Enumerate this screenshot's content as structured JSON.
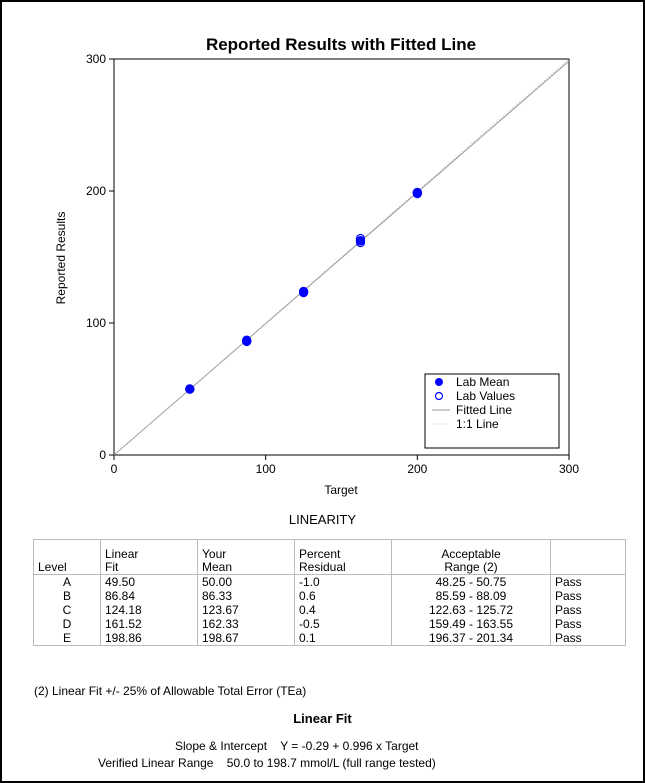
{
  "chart_data": {
    "type": "scatter",
    "title": "Reported Results with Fitted Line",
    "xlabel": "Target",
    "ylabel": "Reported Results",
    "xlim": [
      0,
      300
    ],
    "ylim": [
      0,
      300
    ],
    "xticks": [
      "0",
      "100",
      "200",
      "300"
    ],
    "yticks": [
      "0",
      "100",
      "200",
      "300"
    ],
    "grid": false,
    "legend_position": "bottom-right",
    "series": [
      {
        "name": "Lab Mean",
        "marker": "filled-circle",
        "color": "#0000ff",
        "x": [
          50.0,
          87.5,
          125.0,
          162.5,
          200.0
        ],
        "y": [
          50.0,
          86.33,
          123.67,
          162.33,
          198.67
        ]
      },
      {
        "name": "Lab Values",
        "marker": "open-circle",
        "color": "#0000ff",
        "x": [
          50.0,
          50.0,
          87.5,
          87.5,
          125.0,
          125.0,
          162.5,
          162.5,
          200.0,
          200.0
        ],
        "y": [
          50,
          50,
          86,
          87,
          123,
          124,
          161,
          164,
          198,
          199
        ]
      },
      {
        "name": "Fitted Line",
        "style": "solid",
        "color": "#999999",
        "intercept": -0.29,
        "slope": 0.996
      },
      {
        "name": "1:1 Line",
        "style": "dotted",
        "color": "#bbbbbb",
        "intercept": 0,
        "slope": 1
      }
    ]
  },
  "linearity": {
    "title": "LINEARITY",
    "headers": {
      "level": "Level",
      "fit": [
        "Linear",
        "Fit"
      ],
      "mean": [
        "Your",
        "Mean"
      ],
      "residual": [
        "Percent",
        "Residual"
      ],
      "range": [
        "Acceptable",
        "Range (2)"
      ],
      "status": ""
    },
    "rows": [
      {
        "level": "A",
        "fit": "49.50",
        "mean": "50.00",
        "residual": "-1.0",
        "range": "48.25 - 50.75",
        "status": "Pass"
      },
      {
        "level": "B",
        "fit": "86.84",
        "mean": "86.33",
        "residual": "0.6",
        "range": "85.59 - 88.09",
        "status": "Pass"
      },
      {
        "level": "C",
        "fit": "124.18",
        "mean": "123.67",
        "residual": "0.4",
        "range": "122.63 - 125.72",
        "status": "Pass"
      },
      {
        "level": "D",
        "fit": "161.52",
        "mean": "162.33",
        "residual": "-0.5",
        "range": "159.49 - 163.55",
        "status": "Pass"
      },
      {
        "level": "E",
        "fit": "198.86",
        "mean": "198.67",
        "residual": "0.1",
        "range": "196.37 - 201.34",
        "status": "Pass"
      }
    ],
    "footnote": "(2) Linear Fit +/- 25% of Allowable Total Error (TEa)"
  },
  "linear_fit": {
    "title": "Linear Fit",
    "slope_label": "Slope & Intercept",
    "slope_value": "Y = -0.29 + 0.996 x Target",
    "range_label": "Verified Linear Range",
    "range_value": "50.0 to 198.7 mmol/L (full range tested)"
  }
}
